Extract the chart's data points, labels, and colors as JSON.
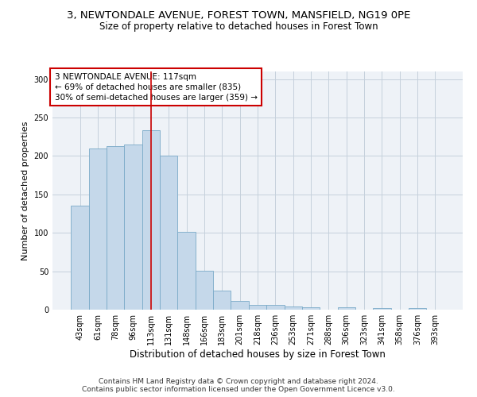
{
  "title_line1": "3, NEWTONDALE AVENUE, FOREST TOWN, MANSFIELD, NG19 0PE",
  "title_line2": "Size of property relative to detached houses in Forest Town",
  "xlabel": "Distribution of detached houses by size in Forest Town",
  "ylabel": "Number of detached properties",
  "categories": [
    "43sqm",
    "61sqm",
    "78sqm",
    "96sqm",
    "113sqm",
    "131sqm",
    "148sqm",
    "166sqm",
    "183sqm",
    "201sqm",
    "218sqm",
    "236sqm",
    "253sqm",
    "271sqm",
    "288sqm",
    "306sqm",
    "323sqm",
    "341sqm",
    "358sqm",
    "376sqm",
    "393sqm"
  ],
  "values": [
    135,
    210,
    213,
    215,
    234,
    200,
    101,
    51,
    25,
    11,
    6,
    6,
    4,
    3,
    0,
    3,
    0,
    2,
    0,
    2,
    0
  ],
  "bar_color": "#c5d8ea",
  "bar_edge_color": "#7aaac8",
  "red_line_index": 4.0,
  "annotation_line1": "3 NEWTONDALE AVENUE: 117sqm",
  "annotation_line2": "← 69% of detached houses are smaller (835)",
  "annotation_line3": "30% of semi-detached houses are larger (359) →",
  "annotation_box_color": "white",
  "annotation_box_edge_color": "#cc0000",
  "red_line_color": "#cc0000",
  "ylim": [
    0,
    310
  ],
  "yticks": [
    0,
    50,
    100,
    150,
    200,
    250,
    300
  ],
  "footer_line1": "Contains HM Land Registry data © Crown copyright and database right 2024.",
  "footer_line2": "Contains public sector information licensed under the Open Government Licence v3.0.",
  "background_color": "#eef2f7",
  "grid_color": "#c5d0dc",
  "title_fontsize": 9.5,
  "subtitle_fontsize": 8.5,
  "tick_fontsize": 7,
  "xlabel_fontsize": 8.5,
  "ylabel_fontsize": 8,
  "annotation_fontsize": 7.5,
  "footer_fontsize": 6.5
}
